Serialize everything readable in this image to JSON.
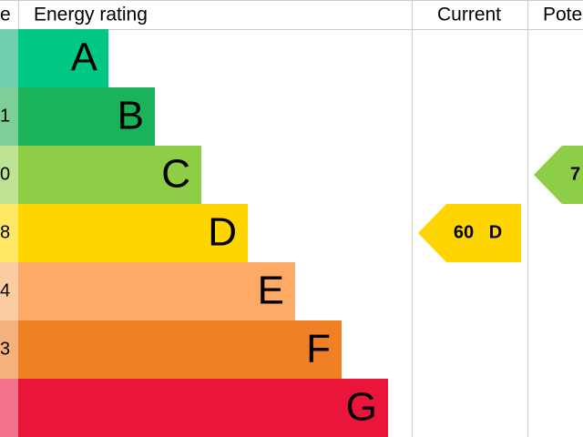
{
  "header": {
    "score": "e",
    "rating": "Energy rating",
    "current": "Current",
    "potential": "Pote"
  },
  "bands": [
    {
      "letter": "A",
      "color": "#00c781",
      "pale": "#6fd0ad"
    },
    {
      "letter": "B",
      "score": "1",
      "color": "#19b459",
      "pale": "#7dcf98"
    },
    {
      "letter": "C",
      "score": "0",
      "color": "#8dce46",
      "pale": "#bde393"
    },
    {
      "letter": "D",
      "score": "8",
      "color": "#ffd500",
      "pale": "#ffe766"
    },
    {
      "letter": "E",
      "score": "4",
      "color": "#fcaa65",
      "pale": "#fdcca3"
    },
    {
      "letter": "F",
      "score": "3",
      "color": "#ef8023",
      "pale": "#f5b37b"
    },
    {
      "letter": "G",
      "color": "#e9153b",
      "pale": "#f27389"
    }
  ],
  "current": {
    "score": 60,
    "letter": "D",
    "color": "#ffd500"
  },
  "potential": {
    "label": "7",
    "color": "#8dce46"
  }
}
